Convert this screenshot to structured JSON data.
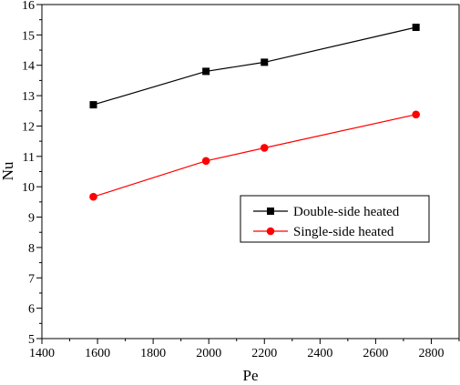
{
  "chart_data": {
    "type": "line",
    "xlabel": "Pe",
    "ylabel": "Nu",
    "xlim": [
      1400,
      2900
    ],
    "ylim": [
      5,
      16
    ],
    "x_ticks": [
      1400,
      1600,
      1800,
      2000,
      2200,
      2400,
      2600,
      2800
    ],
    "y_ticks": [
      5,
      6,
      7,
      8,
      9,
      10,
      11,
      12,
      13,
      14,
      15,
      16
    ],
    "x_tick_labels": [
      "1400",
      "1600",
      "1800",
      "2000",
      "2200",
      "2400",
      "2600",
      "2800"
    ],
    "y_tick_labels": [
      "5",
      "6",
      "7",
      "8",
      "9",
      "10",
      "11",
      "12",
      "13",
      "14",
      "15",
      "16"
    ],
    "grid": false,
    "legend_position": "center-right",
    "series": [
      {
        "name": "Double-side heated",
        "color": "#000000",
        "marker": "square",
        "x": [
          1585,
          1990,
          2200,
          2745
        ],
        "y": [
          12.7,
          13.8,
          14.1,
          15.25
        ]
      },
      {
        "name": "Single-side heated",
        "color": "#ff0000",
        "marker": "circle",
        "x": [
          1585,
          1990,
          2200,
          2745
        ],
        "y": [
          9.67,
          10.85,
          11.28,
          12.38
        ]
      }
    ]
  }
}
